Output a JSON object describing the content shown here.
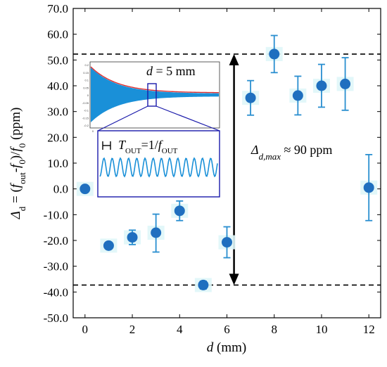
{
  "chart_data": {
    "type": "scatter",
    "title": "",
    "xlabel": "d (mm)",
    "xlabel_parts": {
      "var": "d",
      "unit": " (mm)"
    },
    "ylabel": "Δd = (fout - f0)/f0 (ppm)",
    "ylabel_parts": {
      "delta": "Δ",
      "sub_d": "d",
      "eq": " = (",
      "f1": "f",
      "sub_out": "out",
      "minus": "-",
      "f2": "f",
      "sub_0a": "0",
      "close": ")/",
      "f3": "f",
      "sub_0b": "0",
      "unit": " (ppm)"
    },
    "xlim": [
      -0.5,
      12.5
    ],
    "ylim": [
      -50,
      70
    ],
    "x_ticks": [
      "0",
      "2",
      "4",
      "6",
      "8",
      "10",
      "12"
    ],
    "y_ticks": [
      "-50.0",
      "-40.0",
      "-30.0",
      "-20.0",
      "-10.0",
      "0.0",
      "10.0",
      "20.0",
      "30.0",
      "40.0",
      "50.0",
      "60.0",
      "70.0"
    ],
    "grid": false,
    "marker_color": "#1f6fbf",
    "errorbar_color": "#2a8fd0",
    "points": [
      {
        "x": 0,
        "y": 0.0,
        "err_lo": 0,
        "err_hi": 0
      },
      {
        "x": 1,
        "y": -22.0,
        "err_lo": 0,
        "err_hi": 0
      },
      {
        "x": 2,
        "y": -18.8,
        "err_lo": 2.8,
        "err_hi": 2.8
      },
      {
        "x": 3,
        "y": -17.0,
        "err_lo": 7.5,
        "err_hi": 7.2
      },
      {
        "x": 4,
        "y": -8.5,
        "err_lo": 3.8,
        "err_hi": 3.8
      },
      {
        "x": 5,
        "y": -37.3,
        "err_lo": 1.5,
        "err_hi": 1.5
      },
      {
        "x": 6,
        "y": -20.7,
        "err_lo": 6.0,
        "err_hi": 6.0
      },
      {
        "x": 7,
        "y": 35.3,
        "err_lo": 6.7,
        "err_hi": 6.7
      },
      {
        "x": 8,
        "y": 52.3,
        "err_lo": 7.2,
        "err_hi": 7.2
      },
      {
        "x": 9,
        "y": 36.2,
        "err_lo": 7.5,
        "err_hi": 7.5
      },
      {
        "x": 10,
        "y": 40.0,
        "err_lo": 8.3,
        "err_hi": 8.3
      },
      {
        "x": 11,
        "y": 40.7,
        "err_lo": 10.2,
        "err_hi": 10.2
      },
      {
        "x": 12,
        "y": 0.5,
        "err_lo": 12.8,
        "err_hi": 12.8
      }
    ],
    "reference_lines": [
      {
        "y": 52.3,
        "style": "dashed"
      },
      {
        "y": -37.3,
        "style": "dashed"
      }
    ],
    "range_arrow": {
      "x": 6.3,
      "y_top": 52.3,
      "y_bottom": -37.3
    },
    "annotation": {
      "delta": "Δ",
      "sub": "d,max",
      "text": " ≈ 90 ppm",
      "x": 7.5,
      "y": 3.5
    },
    "inset": {
      "label_d": "d",
      "label_rest": " = 5 mm",
      "period_label_var": "T",
      "period_label_sub": "OUT",
      "period_label_eq": "=1/",
      "period_label_var2": "f",
      "period_label_sub2": "OUT",
      "frame_color": "#1a1aaa",
      "wave_color": "#1a90d8",
      "envelope_color": "#e03030"
    }
  }
}
